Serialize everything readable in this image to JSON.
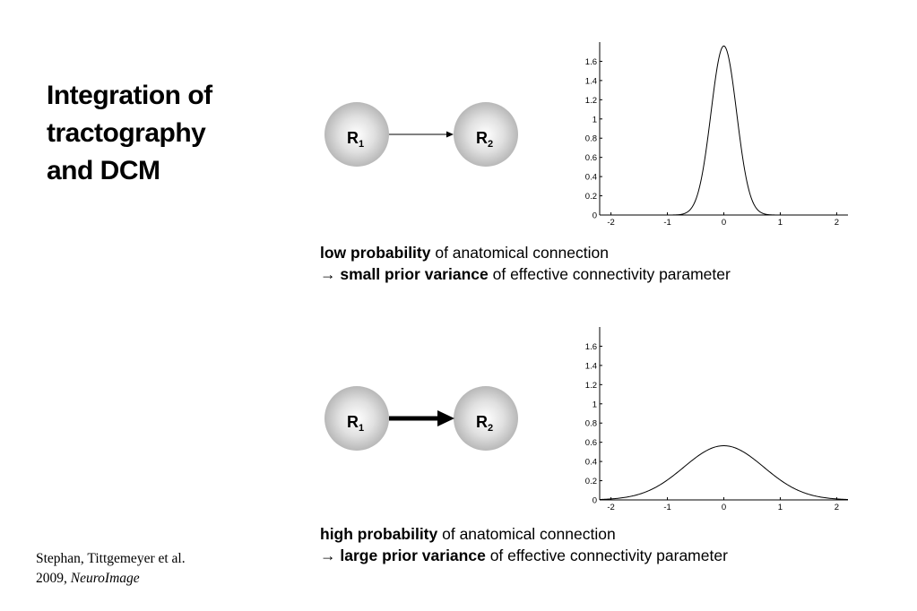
{
  "title": {
    "lines": [
      "Integration of",
      "tractography",
      "and DCM"
    ]
  },
  "diagrams": [
    {
      "node1": {
        "letter": "R",
        "sub": "1"
      },
      "node2": {
        "letter": "R",
        "sub": "2"
      },
      "connection": "thin"
    },
    {
      "node1": {
        "letter": "R",
        "sub": "1"
      },
      "node2": {
        "letter": "R",
        "sub": "2"
      },
      "connection": "thick"
    }
  ],
  "captions": [
    {
      "line1_bold": "low probability",
      "line1_rest": " of anatomical connection",
      "arrow": "→",
      "line2_bold": "small prior variance",
      "line2_rest": " of effective connectivity parameter"
    },
    {
      "line1_bold": "high probability",
      "line1_rest": " of anatomical connection",
      "arrow": "→",
      "line2_bold": "large prior variance",
      "line2_rest": " of effective connectivity parameter"
    }
  ],
  "citation": {
    "line1": "Stephan, Tittgemeyer et al.",
    "line2_plain": "2009, ",
    "line2_italic": "NeuroImage"
  },
  "chart_data": [
    {
      "type": "line",
      "series": [
        {
          "function": "gaussian",
          "mean": 0,
          "sd": 0.227,
          "peak": 1.76
        }
      ],
      "xlim": [
        -2.2,
        2.2
      ],
      "ylim": [
        0,
        1.8
      ],
      "xticks": [
        "-2",
        "-1",
        "0",
        "1",
        "2"
      ],
      "yticks": [
        "0",
        "0.2",
        "0.4",
        "0.6",
        "0.8",
        "1",
        "1.2",
        "1.4",
        "1.6"
      ],
      "title": "",
      "xlabel": "",
      "ylabel": ""
    },
    {
      "type": "line",
      "series": [
        {
          "function": "gaussian",
          "mean": 0,
          "sd": 0.707,
          "peak": 0.564
        }
      ],
      "xlim": [
        -2.2,
        2.2
      ],
      "ylim": [
        0,
        1.8
      ],
      "xticks": [
        "-2",
        "-1",
        "0",
        "1",
        "2"
      ],
      "yticks": [
        "0",
        "0.2",
        "0.4",
        "0.6",
        "0.8",
        "1",
        "1.2",
        "1.4",
        "1.6"
      ],
      "title": "",
      "xlabel": "",
      "ylabel": ""
    }
  ]
}
